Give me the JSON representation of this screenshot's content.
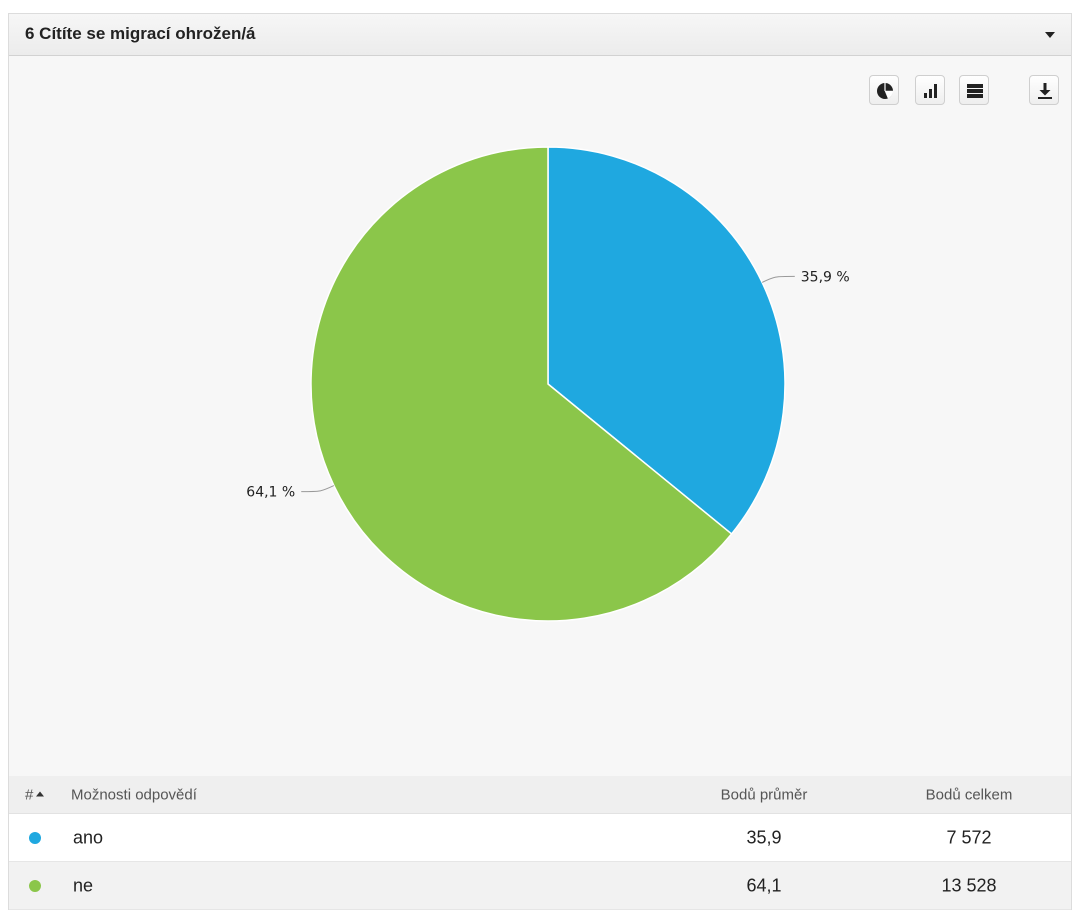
{
  "header": {
    "title": "6 Cítíte se migrací ohrožen/á"
  },
  "toolbar": {
    "buttons": [
      {
        "name": "pie-chart-icon"
      },
      {
        "name": "bar-chart-icon"
      },
      {
        "name": "table-view-icon"
      },
      {
        "name": "download-icon"
      }
    ]
  },
  "chart_data": {
    "type": "pie",
    "slices": [
      {
        "label": "ano",
        "value": 35.9,
        "display": "35,9 %",
        "color": "#1fa8e0"
      },
      {
        "label": "ne",
        "value": 64.1,
        "display": "64,1 %",
        "color": "#8bc64a"
      }
    ]
  },
  "table": {
    "headers": {
      "hash": "#",
      "options": "Možnosti odpovědí",
      "avg": "Bodů průměr",
      "total": "Bodů celkem"
    },
    "rows": [
      {
        "label": "ano",
        "avg": "35,9",
        "total": "7 572",
        "color": "#1fa8e0"
      },
      {
        "label": "ne",
        "avg": "64,1",
        "total": "13 528",
        "color": "#8bc64a"
      }
    ]
  }
}
